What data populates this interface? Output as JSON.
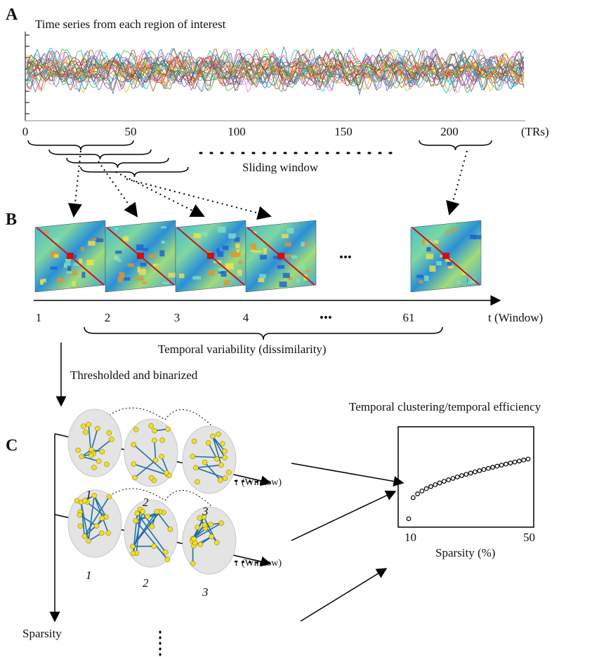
{
  "panel_a": {
    "label": "A",
    "title": "Time series from each region of interest",
    "ticks": [
      "0",
      "50",
      "100",
      "150",
      "200"
    ],
    "unit": "(TRs)",
    "window_label": "Sliding window"
  },
  "panel_b": {
    "label": "B",
    "windows": [
      "1",
      "2",
      "3",
      "4",
      "61"
    ],
    "ellipsis": "•••",
    "axis_label": "t (Window)",
    "brace_label": "Temporal variability (dissimilarity)",
    "arrow_label": "Thresholded and binarized"
  },
  "panel_c": {
    "label": "C",
    "plot_title": "Temporal clustering/temporal efficiency",
    "rows": [
      {
        "windows": [
          "1",
          "2",
          "3"
        ],
        "t": "t",
        "axis_label": "(Window)"
      },
      {
        "windows": [
          "1",
          "2",
          "3"
        ],
        "t": "t",
        "axis_label": "(Window)"
      }
    ],
    "sparsity": "Sparsity",
    "plot_xticks": [
      "10",
      "50"
    ],
    "plot_xlabel": "Sparsity (%)"
  }
}
